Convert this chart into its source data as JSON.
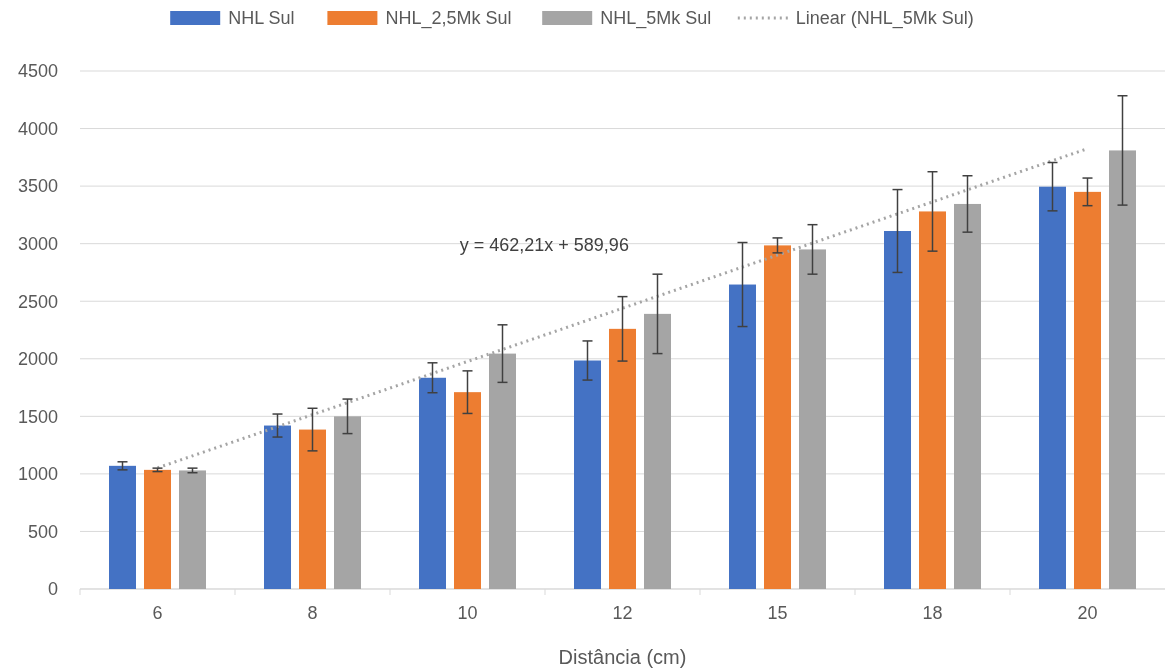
{
  "chart_data": {
    "type": "bar",
    "xlabel": "Distância (cm)",
    "categories": [
      "6",
      "8",
      "10",
      "12",
      "15",
      "18",
      "20"
    ],
    "series": [
      {
        "name": "NHL Sul",
        "color": "#4472c4",
        "values": [
          1070,
          1420,
          1835,
          1985,
          2645,
          3110,
          3495
        ],
        "errors": [
          35,
          100,
          130,
          170,
          365,
          360,
          210
        ]
      },
      {
        "name": "NHL_2,5Mk Sul",
        "color": "#ed7d31",
        "values": [
          1035,
          1385,
          1710,
          2260,
          2985,
          3280,
          3450
        ],
        "errors": [
          15,
          185,
          185,
          280,
          65,
          345,
          120
        ]
      },
      {
        "name": "NHL_5Mk Sul",
        "color": "#a5a5a5",
        "values": [
          1030,
          1500,
          2045,
          2390,
          2950,
          3345,
          3810
        ],
        "errors": [
          20,
          150,
          250,
          345,
          215,
          245,
          475
        ]
      },
      {
        "name": "Linear (NHL_5Mk Sul)",
        "type": "line",
        "color": "#a5a5a5",
        "line_style": "dotted",
        "x": [
          "6",
          "20"
        ],
        "values": [
          1052.17,
          3825.43
        ]
      }
    ],
    "ylim": [
      0,
      4500
    ],
    "yticks": [
      0,
      500,
      1000,
      1500,
      2000,
      2500,
      3000,
      3500,
      4000,
      4500
    ],
    "grid": "y",
    "legend": "top",
    "annotations": [
      "y = 462,21x + 589,96"
    ]
  }
}
